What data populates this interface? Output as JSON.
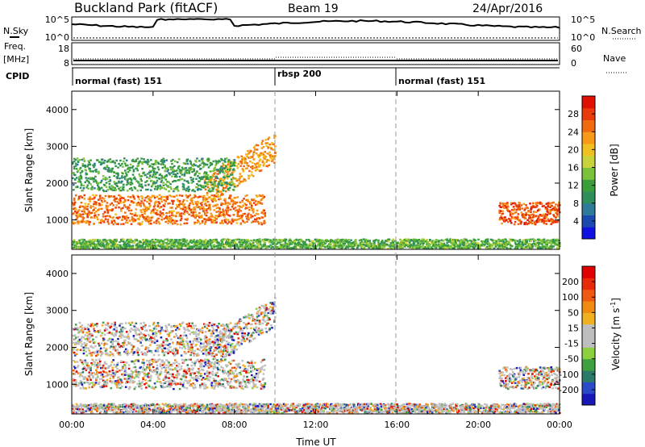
{
  "header": {
    "station": "Buckland Park (fitACF)",
    "beam": "Beam 19",
    "date": "24/Apr/2016"
  },
  "panels": {
    "sky": {
      "left_label": "N.Sky",
      "right_label": "N.Search",
      "left_ticks": [
        "10^5",
        "10^0"
      ],
      "right_ticks": [
        "10^5",
        "10^0"
      ]
    },
    "freq": {
      "left_label": "Freq.",
      "unit": "[MHz]",
      "right_label": "Nave",
      "left_ticks": [
        "18",
        "8"
      ],
      "right_ticks": [
        "60",
        "0"
      ]
    },
    "cpid": {
      "label": "CPID",
      "segments": [
        "normal (fast) 151",
        "rbsp 200",
        "normal (fast) 151"
      ]
    }
  },
  "chart_data": [
    {
      "type": "heatmap",
      "name": "power",
      "ylabel": "Slant Range [km]",
      "yticks": [
        "1000",
        "2000",
        "3000",
        "4000"
      ],
      "ylim": [
        200,
        4500
      ],
      "xlim": [
        "00:00",
        "24:00"
      ],
      "xticks": [
        "00:00",
        "04:00",
        "08:00",
        "12:00",
        "16:00",
        "20:00",
        "00:00"
      ],
      "colorbar": {
        "label": "Power [dB]",
        "ticks": [
          "4",
          "8",
          "12",
          "16",
          "20",
          "24",
          "28"
        ],
        "colors": [
          "#1010e0",
          "#1a4ab0",
          "#2e7a9a",
          "#2f8f5a",
          "#3a9e3a",
          "#7ac23a",
          "#c8d23a",
          "#f0c020",
          "#f79a18",
          "#f06a10",
          "#e83a0a",
          "#e01000"
        ]
      },
      "features": [
        {
          "name": "ionospheric scatter band",
          "start_hour": 0,
          "end_hour": 9.5,
          "range_km": [
            900,
            1700
          ],
          "power_db": 24
        },
        {
          "name": "rising echo band",
          "start_hour": 6.5,
          "end_hour": 10,
          "range_km": [
            1400,
            3400
          ],
          "power_db": 22
        },
        {
          "name": "scatter layer",
          "start_hour": 0,
          "end_hour": 8,
          "range_km": [
            1800,
            2700
          ],
          "power_db": 10
        },
        {
          "name": "late band",
          "start_hour": 21,
          "end_hour": 24,
          "range_km": [
            900,
            1500
          ],
          "power_db": 26
        },
        {
          "name": "near-range clutter",
          "start_hour": 0,
          "end_hour": 24,
          "range_km": [
            200,
            500
          ],
          "power_db": 12
        }
      ]
    },
    {
      "type": "heatmap",
      "name": "velocity",
      "ylabel": "Slant Range [km]",
      "xlabel": "Time UT",
      "yticks": [
        "1000",
        "2000",
        "3000",
        "4000"
      ],
      "ylim": [
        200,
        4500
      ],
      "xlim": [
        "00:00",
        "24:00"
      ],
      "xticks": [
        "00:00",
        "04:00",
        "08:00",
        "12:00",
        "16:00",
        "20:00",
        "00:00"
      ],
      "colorbar": {
        "label": "Velocity [m s",
        "label_sup": "-1",
        "label_end": "]",
        "ticks": [
          "200",
          "100",
          "50",
          "15",
          "-15",
          "-50",
          "-100",
          "-200"
        ],
        "colors": [
          "#1818b8",
          "#2a48c8",
          "#2a7a6a",
          "#40a040",
          "#8cd040",
          "#bebebe",
          "#bebebe",
          "#f0b020",
          "#f08a10",
          "#f05a10",
          "#e82a08",
          "#e00000"
        ]
      }
    }
  ]
}
